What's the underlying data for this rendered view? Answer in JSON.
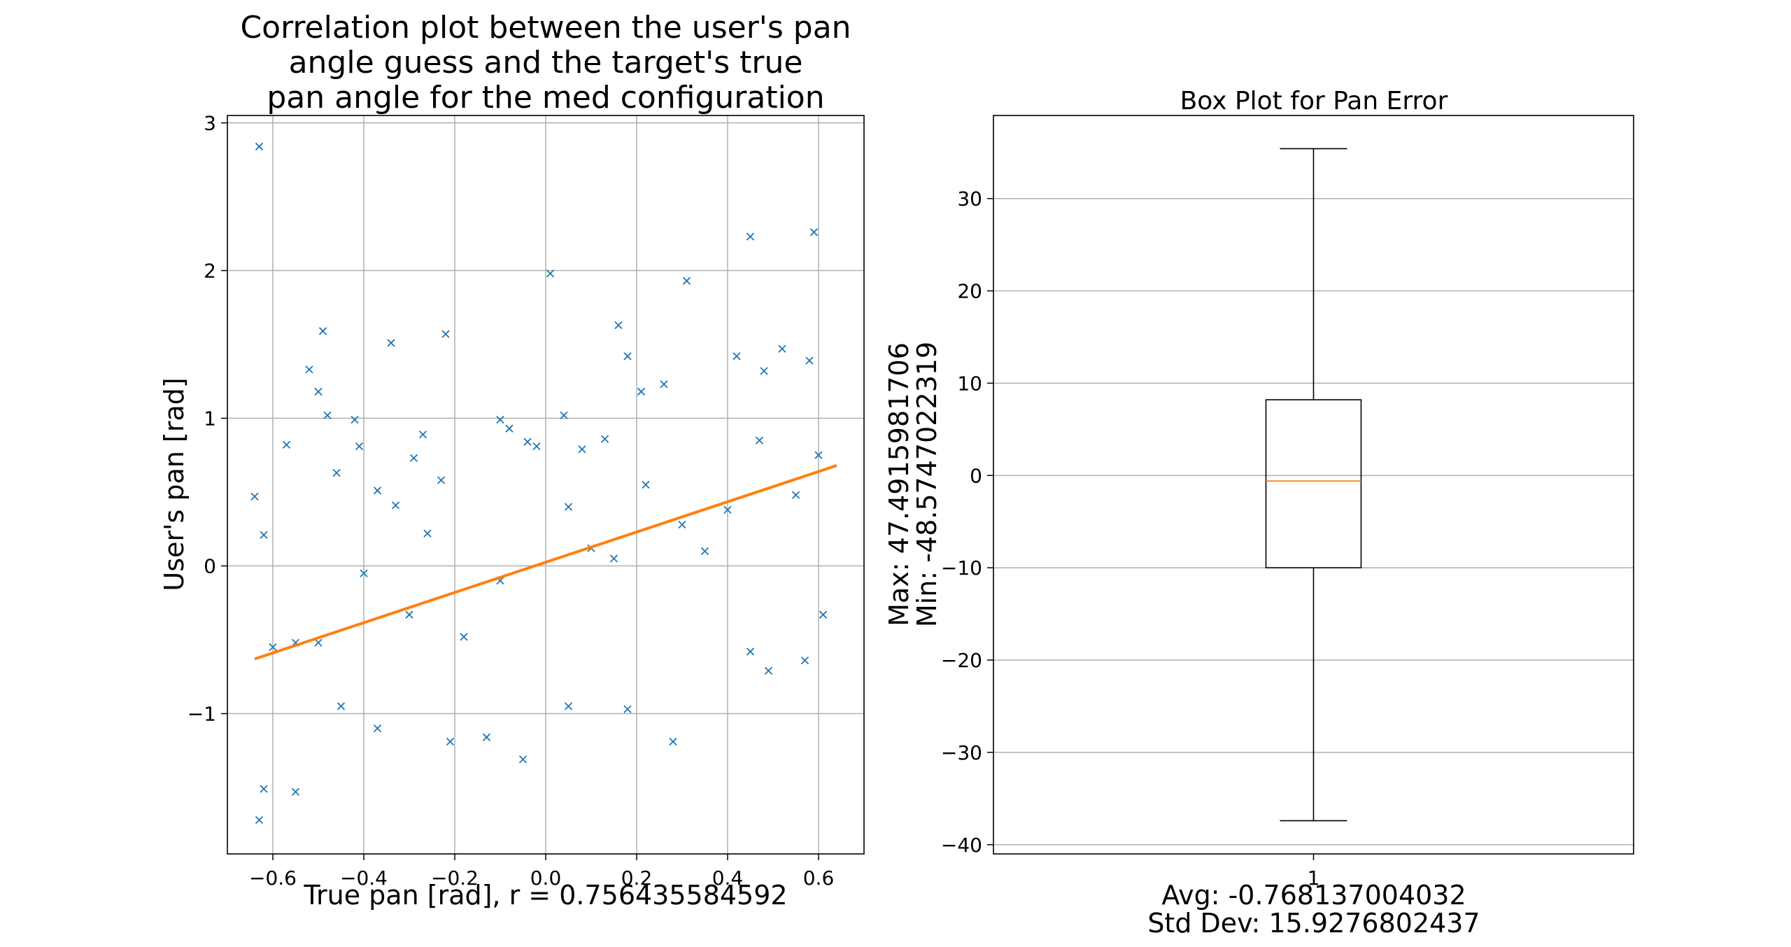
{
  "chart_data": [
    {
      "type": "scatter",
      "title_lines": [
        "Correlation plot between the user's pan",
        "angle guess and the target's true",
        "pan angle for the med configuration"
      ],
      "xlabel": "True pan [rad], r = 0.756435584592",
      "ylabel": "User's pan [rad]",
      "xlim": [
        -0.7,
        0.7
      ],
      "ylim": [
        -1.95,
        3.05
      ],
      "xticks": [
        -0.6,
        -0.4,
        -0.2,
        0.0,
        0.2,
        0.4,
        0.6
      ],
      "xtick_labels": [
        "−0.6",
        "−0.4",
        "−0.2",
        "0.0",
        "0.2",
        "0.4",
        "0.6"
      ],
      "yticks": [
        -1,
        0,
        1,
        2,
        3
      ],
      "ytick_labels": [
        "−1",
        "0",
        "1",
        "2",
        "3"
      ],
      "grid": true,
      "marker": "x",
      "series_color": "#1f77b4",
      "fit_color": "#ff7f0e",
      "fit_line": {
        "x": [
          -0.64,
          0.64
        ],
        "y": [
          -0.63,
          0.68
        ]
      },
      "points": [
        [
          -0.63,
          2.84
        ],
        [
          -0.63,
          -1.72
        ],
        [
          -0.62,
          -1.51
        ],
        [
          -0.55,
          -1.53
        ],
        [
          -0.64,
          0.47
        ],
        [
          -0.62,
          0.21
        ],
        [
          -0.57,
          0.82
        ],
        [
          -0.49,
          1.59
        ],
        [
          -0.52,
          1.33
        ],
        [
          -0.5,
          1.18
        ],
        [
          -0.48,
          1.02
        ],
        [
          -0.34,
          1.51
        ],
        [
          -0.22,
          1.57
        ],
        [
          -0.42,
          0.99
        ],
        [
          -0.41,
          0.81
        ],
        [
          -0.46,
          0.63
        ],
        [
          -0.37,
          0.51
        ],
        [
          -0.33,
          0.41
        ],
        [
          -0.27,
          0.89
        ],
        [
          -0.29,
          0.73
        ],
        [
          -0.23,
          0.58
        ],
        [
          -0.1,
          0.99
        ],
        [
          -0.08,
          0.93
        ],
        [
          -0.04,
          0.84
        ],
        [
          -0.02,
          0.81
        ],
        [
          0.01,
          1.98
        ],
        [
          0.04,
          1.02
        ],
        [
          0.08,
          0.79
        ],
        [
          0.13,
          0.86
        ],
        [
          0.16,
          1.63
        ],
        [
          0.18,
          1.42
        ],
        [
          0.21,
          1.18
        ],
        [
          0.26,
          1.23
        ],
        [
          0.31,
          1.93
        ],
        [
          0.45,
          2.23
        ],
        [
          0.59,
          2.26
        ],
        [
          0.52,
          1.47
        ],
        [
          0.42,
          1.42
        ],
        [
          0.48,
          1.32
        ],
        [
          0.58,
          1.39
        ],
        [
          -0.55,
          -0.52
        ],
        [
          -0.6,
          -0.55
        ],
        [
          -0.45,
          -0.95
        ],
        [
          -0.37,
          -1.1
        ],
        [
          -0.21,
          -1.19
        ],
        [
          -0.13,
          -1.16
        ],
        [
          -0.05,
          -1.31
        ],
        [
          0.05,
          -0.95
        ],
        [
          0.18,
          -0.97
        ],
        [
          0.28,
          -1.19
        ],
        [
          0.45,
          -0.58
        ],
        [
          0.49,
          -0.71
        ],
        [
          0.57,
          -0.64
        ],
        [
          0.61,
          -0.33
        ],
        [
          0.55,
          0.48
        ],
        [
          0.6,
          0.75
        ],
        [
          0.4,
          0.38
        ],
        [
          0.3,
          0.28
        ],
        [
          0.1,
          0.12
        ],
        [
          -0.1,
          -0.1
        ],
        [
          -0.3,
          -0.33
        ],
        [
          -0.5,
          -0.52
        ],
        [
          0.22,
          0.55
        ],
        [
          0.15,
          0.05
        ],
        [
          -0.18,
          -0.48
        ],
        [
          0.35,
          0.1
        ],
        [
          -0.4,
          -0.05
        ],
        [
          0.05,
          0.4
        ],
        [
          -0.26,
          0.22
        ],
        [
          0.47,
          0.85
        ]
      ]
    },
    {
      "type": "box",
      "title": "Box Plot for Pan Error",
      "category": "1",
      "ylim": [
        -41,
        39
      ],
      "yticks": [
        -40,
        -30,
        -20,
        -10,
        0,
        10,
        20,
        30
      ],
      "ytick_labels": [
        "−40",
        "−30",
        "−20",
        "−10",
        "0",
        "10",
        "20",
        "30"
      ],
      "grid": "y",
      "box": {
        "whisker_low": -37.4,
        "q1": -10.0,
        "median": -0.6,
        "q3": 8.2,
        "whisker_high": 35.4
      },
      "median_color": "#ff7f0e",
      "ylabel_lines": [
        "Max: 47.4915981706",
        "Min: -48.5747022319"
      ],
      "xlabel_lines": [
        "Avg: -0.768137004032",
        "Std Dev: 15.9276802437"
      ]
    }
  ]
}
